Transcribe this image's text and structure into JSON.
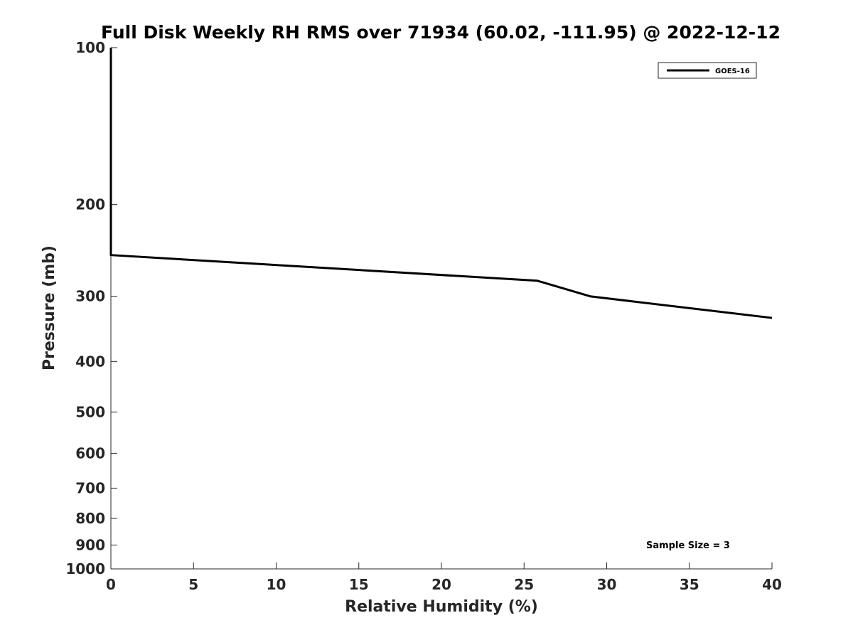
{
  "chart_data": {
    "type": "line",
    "title": "Full Disk Weekly RH RMS over 71934 (60.02, -111.95) @ 2022-12-12",
    "xlabel": "Relative Humidity (%)",
    "ylabel": "Pressure (mb)",
    "xlim": [
      0,
      40
    ],
    "ylim": [
      100,
      1000
    ],
    "y_scale": "log",
    "y_reversed": true,
    "x_ticks": [
      0,
      5,
      10,
      15,
      20,
      25,
      30,
      35,
      40
    ],
    "y_ticks": [
      100,
      200,
      300,
      400,
      500,
      600,
      700,
      800,
      900,
      1000
    ],
    "grid": false,
    "legend_position": "top-right",
    "series": [
      {
        "name": "GOES-16",
        "color": "#000000",
        "points": [
          {
            "x": 0,
            "y": 100
          },
          {
            "x": 0,
            "y": 150
          },
          {
            "x": 0,
            "y": 175
          },
          {
            "x": 0,
            "y": 200
          },
          {
            "x": 0,
            "y": 250
          },
          {
            "x": 25.8,
            "y": 280
          },
          {
            "x": 29,
            "y": 300
          },
          {
            "x": 40,
            "y": 330
          }
        ]
      }
    ],
    "annotation": "Sample Size = 3"
  }
}
